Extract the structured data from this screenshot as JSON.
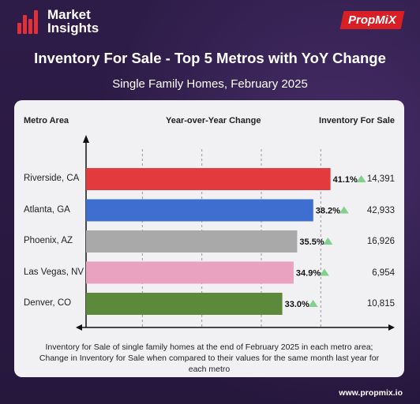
{
  "header": {
    "logo_line1": "Market",
    "logo_line2": "Insights",
    "brand": "PropMiX"
  },
  "title": "Inventory For Sale - Top 5 Metros with YoY Change",
  "subtitle": "Single Family Homes, February 2025",
  "colors": {
    "background": "#2b1a44",
    "accent_red": "#d81f26",
    "up_arrow": "#7fd18b"
  },
  "chart_data": {
    "type": "bar",
    "orientation": "horizontal",
    "column_headers": {
      "metro": "Metro Area",
      "change": "Year-over-Year Change",
      "inventory": "Inventory For Sale"
    },
    "categories": [
      "Riverside, CA",
      "Atlanta, GA",
      "Phoenix, AZ",
      "Las Vegas, NV",
      "Denver, CO"
    ],
    "values": [
      41.1,
      38.2,
      35.5,
      34.9,
      33.0
    ],
    "value_labels": [
      "41.1%",
      "38.2%",
      "35.5%",
      "34.9%",
      "33.0%"
    ],
    "inventory": [
      "14,391",
      "42,933",
      "16,926",
      "6,954",
      "10,815"
    ],
    "bar_colors": [
      "#e33a3d",
      "#3e6fd0",
      "#a9a9a9",
      "#e9a2bf",
      "#5d8a3a"
    ],
    "xlim": [
      0,
      45
    ],
    "grid": "vertical dashed"
  },
  "caption": "Inventory for Sale of single family homes at the end of February 2025 in each metro area; Change in Inventory for Sale when compared to their values for the same month last year for each metro",
  "footer": {
    "website": "www.propmix.io"
  }
}
